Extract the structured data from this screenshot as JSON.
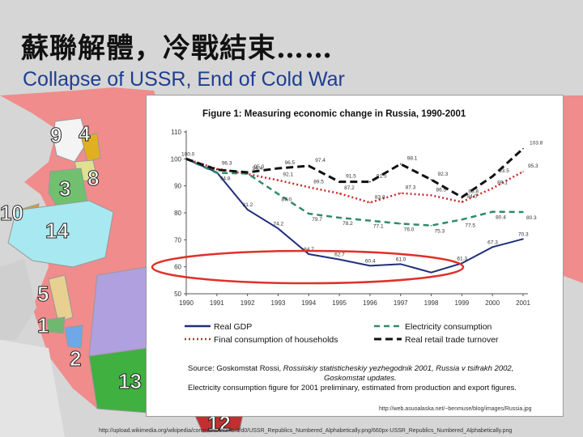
{
  "slide": {
    "title_zh": "蘇聯解體，冷戰結束……",
    "title_en": "Collapse of USSR, End of Cold War",
    "map_numbers": [
      "9",
      "4",
      "8",
      "3",
      "10",
      "14",
      "5",
      "1",
      "2",
      "13",
      "12"
    ],
    "source_chart_url": "http://web.asuoalaska.net/~benmuse/blog/images/Russia.jpg",
    "source_map_url": "http://upload.wikimedia.org/wikipedia/commons/thumb/d/d0/USSR_Republics_Numbered_Alphabetically.png/660px-USSR_Republics_Numbered_Alphabetically.png"
  },
  "chart_data": {
    "type": "line",
    "title": "Figure 1: Measuring economic change in Russia, 1990-2001",
    "x": [
      "1990",
      "1991",
      "1992",
      "1993",
      "1994",
      "1995",
      "1996",
      "1997",
      "1998",
      "1999",
      "2000",
      "2001"
    ],
    "ylim": [
      50,
      110
    ],
    "yticks": [
      "50",
      "60",
      "70",
      "80",
      "90",
      "100",
      "110"
    ],
    "series": [
      {
        "name": "Real GDP",
        "color": "#1f2f7a",
        "style": "solid",
        "values": [
          100.0,
          95.0,
          81.2,
          74.2,
          64.7,
          62.7,
          60.4,
          61.0,
          57.9,
          61.3,
          67.3,
          70.3
        ],
        "labels": [
          "100.0",
          "",
          "81.2",
          "74.2",
          "64.7",
          "62.7",
          "60.4",
          "61.0",
          "",
          "61.3",
          "67.3",
          "70.3"
        ]
      },
      {
        "name": "Final consumption of households",
        "color": "#c62a2a",
        "style": "dotted",
        "values": [
          100.0,
          96.3,
          94.4,
          92.1,
          89.5,
          87.2,
          83.8,
          87.3,
          86.5,
          84.0,
          89.1,
          95.3
        ],
        "labels": [
          "",
          "96.3",
          "94.4",
          "92.1",
          "89.5",
          "87.2",
          "83.8",
          "87.3",
          "86.5",
          "84.0",
          "89.1",
          "95.3"
        ]
      },
      {
        "name": "Electricity consumption",
        "color": "#2e8b6a",
        "style": "dashed",
        "values": [
          100.0,
          94.8,
          94.6,
          87.0,
          79.7,
          78.2,
          77.1,
          76.0,
          75.3,
          77.5,
          80.4,
          80.3
        ],
        "labels": [
          "",
          "94.8",
          "",
          "87.0",
          "79.7",
          "78.2",
          "77.1",
          "76.0",
          "75.3",
          "77.5",
          "80.4",
          "80.3"
        ]
      },
      {
        "name": "Real retail trade turnover",
        "color": "#111111",
        "style": "dashed",
        "values": [
          100.0,
          96.0,
          95.0,
          96.5,
          97.4,
          91.5,
          91.5,
          98.1,
          92.3,
          85.8,
          93.5,
          103.8
        ],
        "labels": [
          "",
          "",
          "95.0",
          "96.5",
          "97.4",
          "91.5",
          "91.5",
          "98.1",
          "92.3",
          "85.8",
          "93.5",
          "103.8"
        ]
      }
    ],
    "caption_line1_a": "Source: Goskomstat Rossi,",
    "caption_line1_b": "Rossiiskiy statisticheskiy yezhegodnik 2001, Russia v tsifrakh 2002,",
    "caption_line2": "Goskomstat updates.",
    "caption_line3": "Electricity consumption figure for 2001 preliminary, estimated from production and export figures."
  }
}
